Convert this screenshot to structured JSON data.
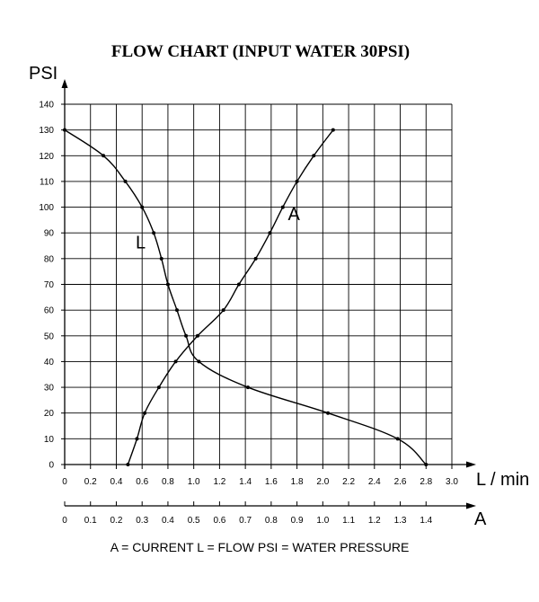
{
  "chart_data": {
    "type": "line",
    "title": "FLOW CHART (INPUT WATER 30PSI)",
    "ylabel": "PSI",
    "xlabel": "L / min",
    "x2label": "A",
    "legend_text": "A = CURRENT   L = FLOW   PSI = WATER PRESSURE",
    "ylim": [
      0,
      140
    ],
    "xlim": [
      0,
      3.0
    ],
    "x2lim": [
      0,
      1.5
    ],
    "grid": true,
    "y_ticks": [
      "0",
      "10",
      "20",
      "30",
      "40",
      "50",
      "60",
      "70",
      "80",
      "90",
      "100",
      "110",
      "120",
      "130",
      "140"
    ],
    "x_ticks": [
      "0",
      "0.2",
      "0.4",
      "0.6",
      "0.8",
      "1.0",
      "1.2",
      "1.4",
      "1.6",
      "1.8",
      "2.0",
      "2.2",
      "2.4",
      "2.6",
      "2.8",
      "3.0"
    ],
    "x2_ticks": [
      "0",
      "0.1",
      "0.2",
      "0.3",
      "0.4",
      "0.5",
      "0.6",
      "0.7",
      "0.8",
      "0.9",
      "1.0",
      "1.1",
      "1.2",
      "1.3",
      "1.4"
    ],
    "series": [
      {
        "name": "L",
        "axis": "L / min",
        "points": [
          [
            0,
            130
          ],
          [
            0.3,
            120
          ],
          [
            0.47,
            110
          ],
          [
            0.6,
            100
          ],
          [
            0.69,
            90
          ],
          [
            0.75,
            80
          ],
          [
            0.8,
            70
          ],
          [
            0.87,
            60
          ],
          [
            0.94,
            50
          ],
          [
            1.04,
            40
          ],
          [
            1.42,
            30
          ],
          [
            2.04,
            20
          ],
          [
            2.58,
            10
          ],
          [
            2.8,
            0
          ]
        ]
      },
      {
        "name": "A",
        "axis": "A",
        "points": [
          [
            0.245,
            0
          ],
          [
            0.28,
            10
          ],
          [
            0.31,
            20
          ],
          [
            0.365,
            30
          ],
          [
            0.43,
            40
          ],
          [
            0.515,
            50
          ],
          [
            0.615,
            60
          ],
          [
            0.675,
            70
          ],
          [
            0.74,
            80
          ],
          [
            0.795,
            90
          ],
          [
            0.845,
            100
          ],
          [
            0.9,
            110
          ],
          [
            0.965,
            120
          ],
          [
            1.04,
            130
          ]
        ]
      }
    ]
  }
}
